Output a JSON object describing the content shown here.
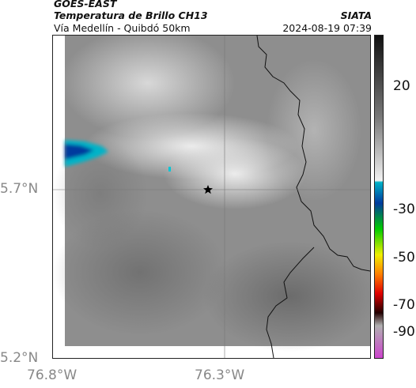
{
  "header": {
    "satellite": "GOES-EAST",
    "product": "Temperatura de Brillo CH13",
    "region": "Vía Medellín - Quibdó 50km",
    "org": "SIATA",
    "datetime": "2024-08-19 07:39"
  },
  "axes": {
    "lat_labels": [
      "5.7°N",
      "5.2°N"
    ],
    "lon_labels": [
      "76.8°W",
      "76.3°W"
    ]
  },
  "colorbar": {
    "labels": [
      "20",
      "-30",
      "-50",
      "-70",
      "-90"
    ],
    "colors": [
      "#111111",
      "#777777",
      "#f2f2f2",
      "#00b3c8",
      "#003a9e",
      "#00cc00",
      "#f0f000",
      "#ff7f00",
      "#e00000",
      "#220000",
      "#b0b0b0",
      "#cc44cc"
    ]
  },
  "map": {
    "marker": "star-marker"
  }
}
